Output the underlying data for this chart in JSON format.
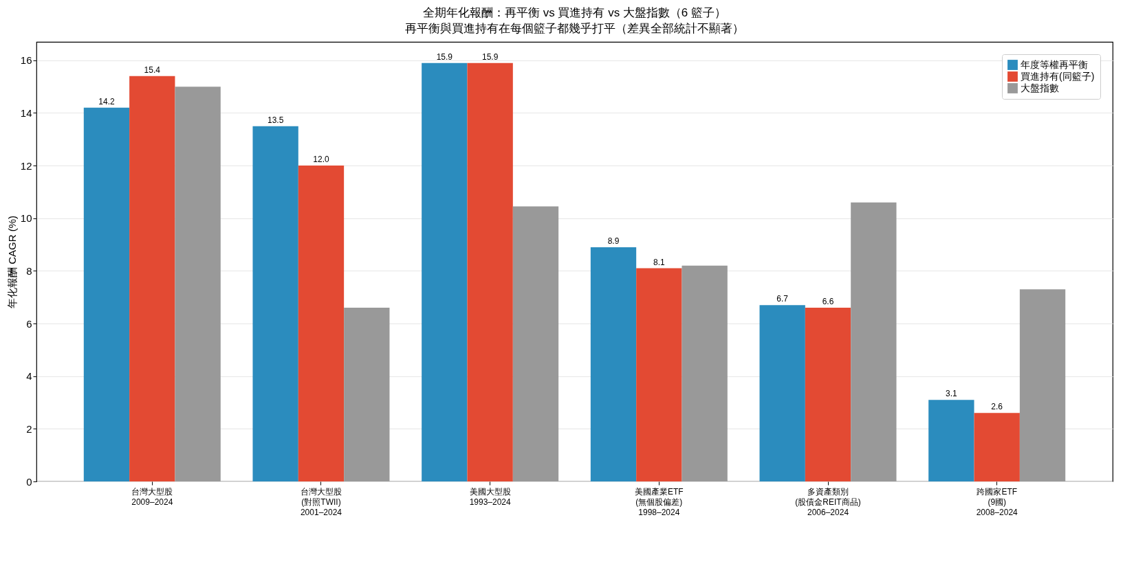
{
  "chart_data": {
    "type": "bar",
    "title": "全期年化報酬：再平衡 vs 買進持有 vs 大盤指數（6 籃子）",
    "subtitle": "再平衡與買進持有在每個籃子都幾乎打平（差異全部統計不顯著）",
    "ylabel": "年化報酬 CAGR (%)",
    "categories": [
      "台灣大型股\n2009–2024",
      "台灣大型股\n(對照TWII)\n2001–2024",
      "美國大型股\n1993–2024",
      "美國產業ETF\n(無個股偏差)\n1998–2024",
      "多資產類別\n(股債金REIT商品)\n2006–2024",
      "跨國家ETF\n(9國)\n2008–2024"
    ],
    "series": [
      {
        "name": "年度等權再平衡",
        "color": "#2b8cbe",
        "values": [
          14.2,
          13.5,
          15.9,
          8.9,
          6.7,
          3.1
        ],
        "value_labels": [
          "14.2",
          "13.5",
          "15.9",
          "8.9",
          "6.7",
          "3.1"
        ]
      },
      {
        "name": "買進持有(同籃子)",
        "color": "#e34a33",
        "values": [
          15.4,
          12.0,
          15.9,
          8.1,
          6.6,
          2.6
        ],
        "value_labels": [
          "15.4",
          "12.0",
          "15.9",
          "8.1",
          "6.6",
          "2.6"
        ]
      },
      {
        "name": "大盤指數",
        "color": "#999999",
        "values": [
          15.0,
          6.6,
          10.45,
          8.2,
          10.6,
          7.3
        ]
      }
    ],
    "ylim": [
      0,
      16.7
    ],
    "yticks": [
      0,
      2,
      4,
      6,
      8,
      10,
      12,
      14,
      16
    ],
    "grid": "y",
    "legend": "top right"
  }
}
